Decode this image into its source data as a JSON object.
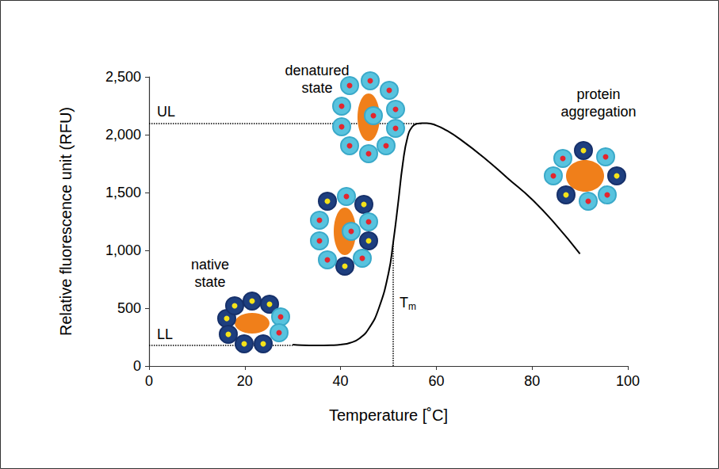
{
  "chart_data": {
    "type": "line",
    "x_label": "Temperature [˚C]",
    "y_label": "Relative fluorescence unit (RFU)",
    "x": [
      30,
      32,
      35,
      38,
      40,
      42,
      44,
      46,
      48,
      50,
      51,
      52,
      53,
      54,
      55,
      56,
      57,
      58,
      60,
      62,
      65,
      70,
      75,
      80,
      85,
      90
    ],
    "values": [
      185,
      180,
      178,
      180,
      185,
      200,
      240,
      330,
      500,
      800,
      1070,
      1400,
      1750,
      1980,
      2070,
      2095,
      2100,
      2100,
      2080,
      2040,
      1960,
      1800,
      1620,
      1440,
      1220,
      970
    ],
    "color": "#000000",
    "xlim": [
      0,
      100
    ],
    "xticks": [
      0,
      20,
      40,
      60,
      80,
      100
    ],
    "ylim": [
      0,
      2500
    ],
    "yticks": [
      0,
      500,
      {
        "value": 1000,
        "label": "1,000"
      },
      {
        "value": 1500,
        "label": "1,500"
      },
      {
        "value": 2000,
        "label": "2,000"
      },
      {
        "value": 2500,
        "label": "2,500"
      }
    ],
    "grid": false,
    "reference_lines": [
      {
        "label": "UL",
        "axis": "y",
        "value": 2100
      },
      {
        "label": "LL",
        "axis": "y",
        "value": 180
      },
      {
        "label": "Tm",
        "axis": "x",
        "value": 51
      }
    ],
    "annotations": [
      "native state",
      "denatured state",
      "protein aggregation"
    ]
  }
}
